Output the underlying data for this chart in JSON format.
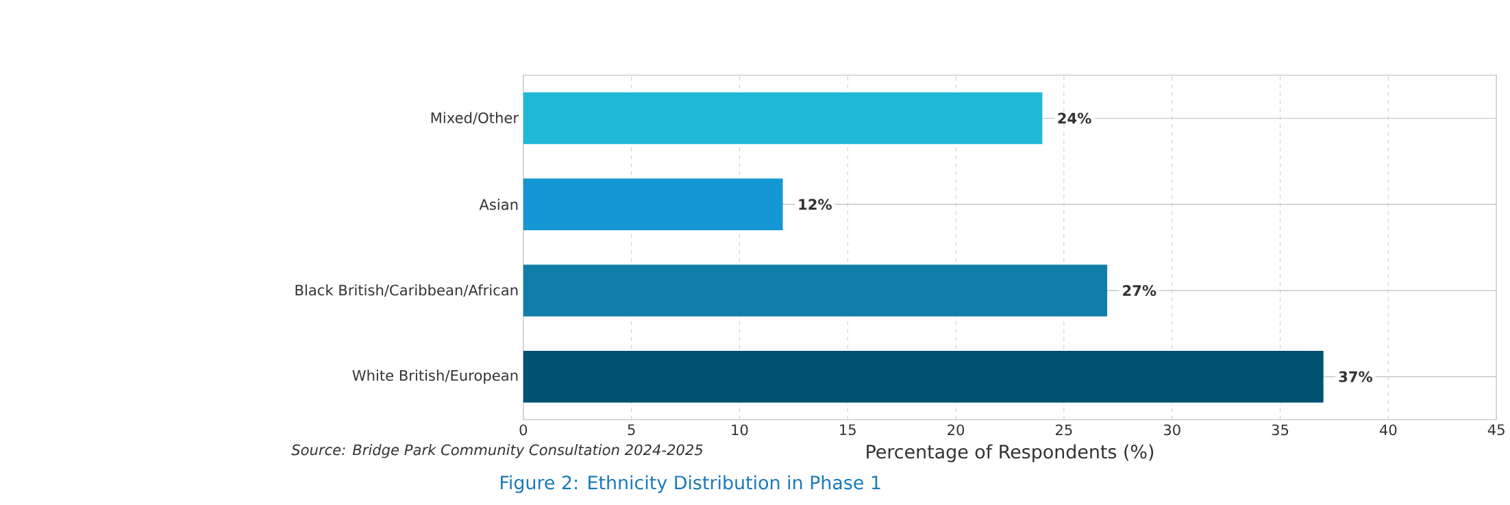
{
  "chart_data": {
    "type": "bar",
    "orientation": "horizontal",
    "xlabel": "Percentage of Respondents (%)",
    "categories": [
      "Mixed/Other",
      "Asian",
      "Black British/Caribbean/African",
      "White British/European"
    ],
    "values": [
      24,
      12,
      27,
      37
    ],
    "colors": [
      "#1fb8d6",
      "#1597d3",
      "#117ea9",
      "#015172"
    ],
    "value_labels": [
      "24%",
      "12%",
      "27%",
      "37%"
    ],
    "xlim": [
      0,
      45
    ],
    "xticks": [
      0,
      5,
      10,
      15,
      20,
      25,
      30,
      35,
      40,
      45
    ],
    "grid": true,
    "annotations": [
      "Source: Bridge Park Community Consultation 2024-2025",
      "Figure 2: Ethnicity Distribution in Phase 1"
    ]
  }
}
